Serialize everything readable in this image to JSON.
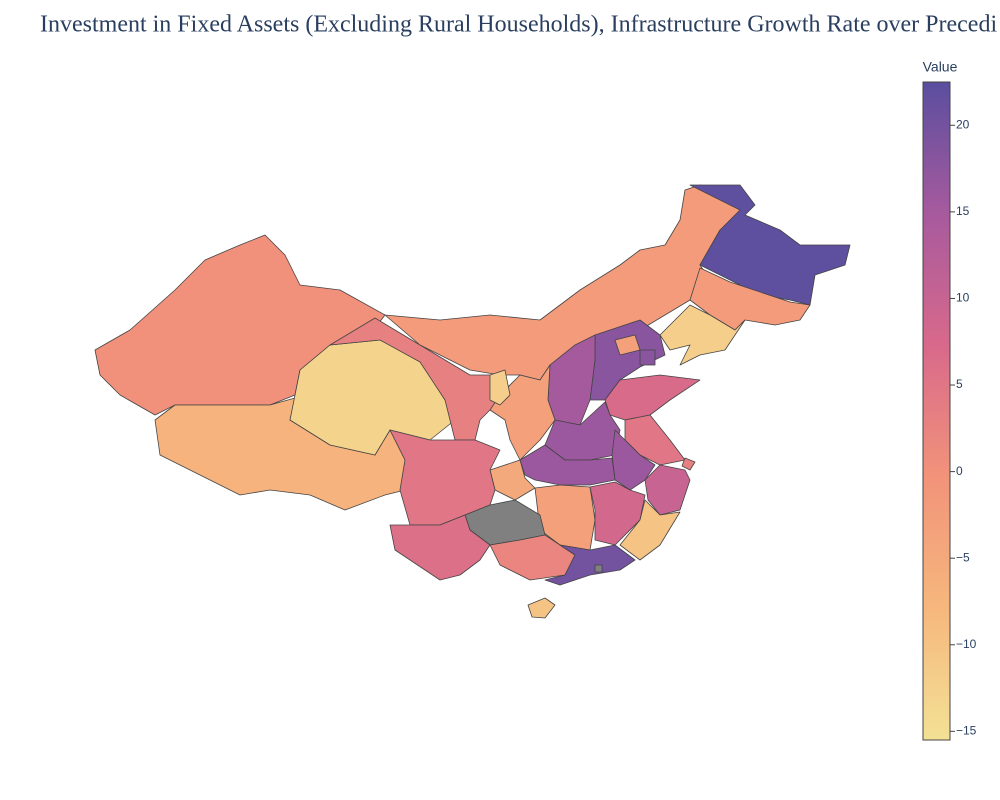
{
  "chart_data": {
    "type": "choropleth",
    "title": "Investment in Fixed Assets (Excluding Rural Households), Infrastructure Growth Rate over Precedi",
    "colorbar_title": "Value",
    "values": [
      0,
      -7,
      -13,
      3,
      -2,
      22,
      -2,
      -12,
      18,
      -3,
      18,
      15,
      -3,
      -12,
      7,
      16,
      5,
      3,
      16,
      16,
      10,
      -5,
      5,
      -3,
      8,
      -10,
      null,
      6,
      2,
      20,
      -10,
      null
    ],
    "clim": [
      -15.5,
      22.5
    ],
    "colorscale": [
      "#f3e195",
      "#f6b77d",
      "#f2937a",
      "#d8698b",
      "#a75a9e",
      "#5a4e9f"
    ],
    "null_color": "#808080",
    "cticks": [
      {
        "value": 20,
        "label": "20"
      },
      {
        "value": 15,
        "label": "15"
      },
      {
        "value": 10,
        "label": "10"
      },
      {
        "value": 5,
        "label": "5"
      },
      {
        "value": 0,
        "label": "0"
      },
      {
        "value": -5,
        "label": "−5"
      },
      {
        "value": -10,
        "label": "−10"
      },
      {
        "value": -15,
        "label": "−15"
      }
    ]
  }
}
